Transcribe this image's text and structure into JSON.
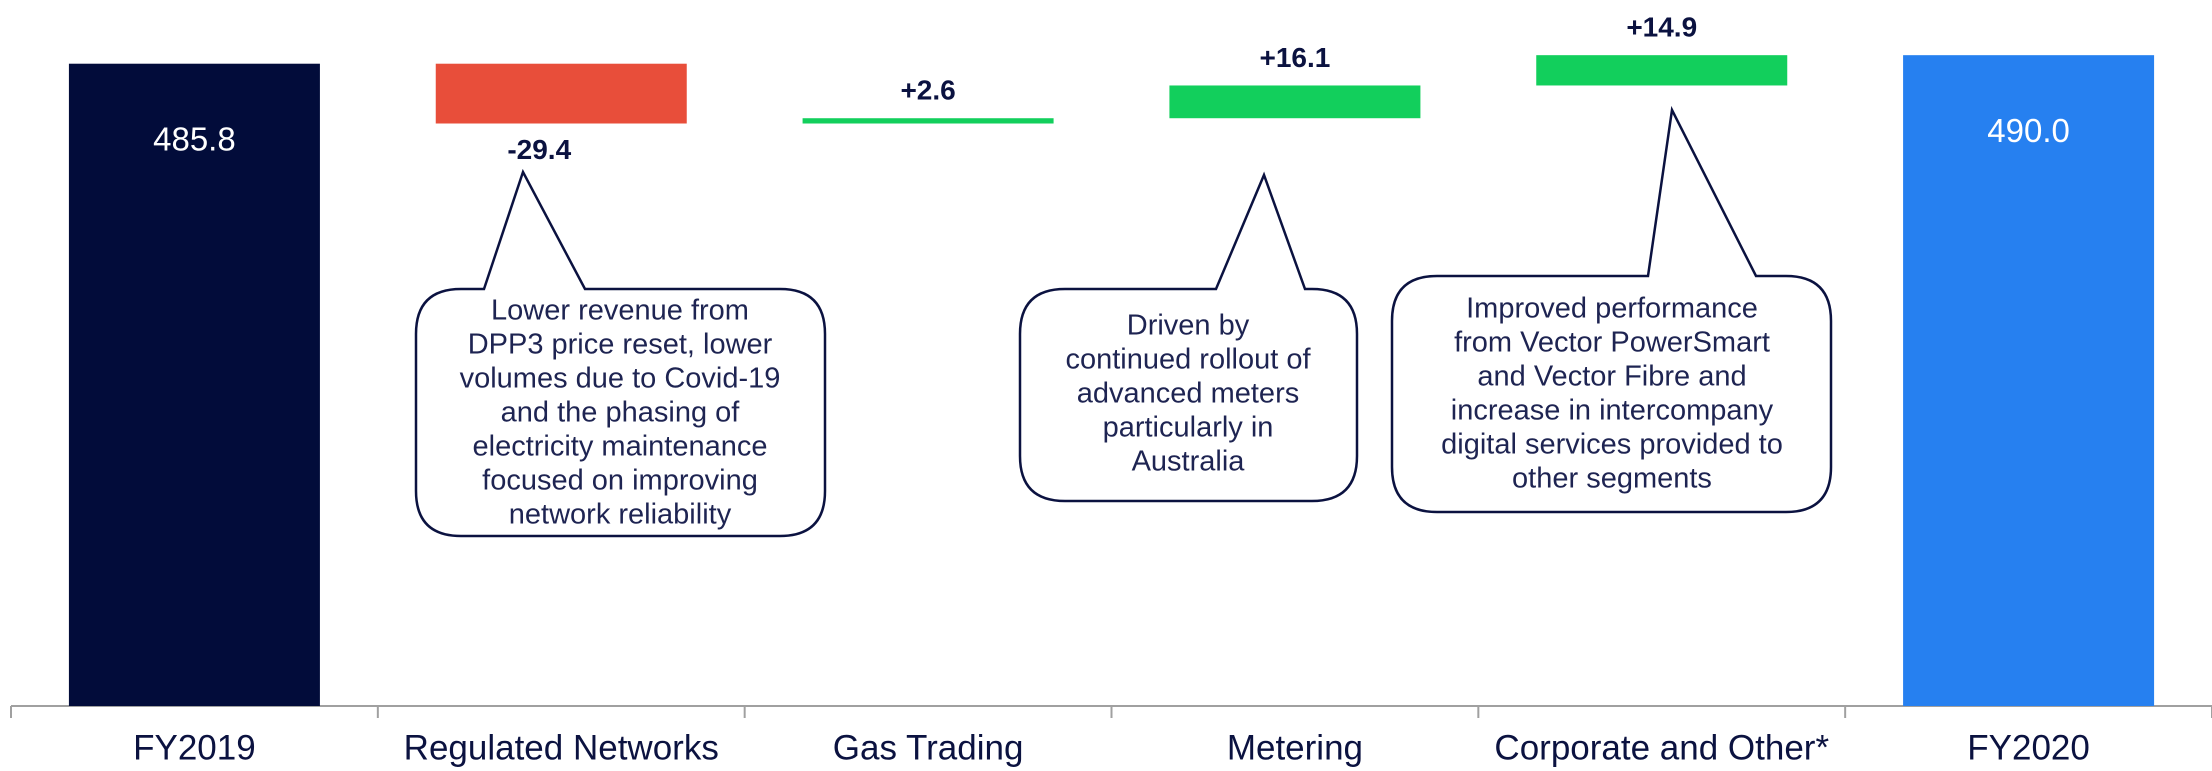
{
  "chart_data": {
    "type": "waterfall",
    "categories": [
      "FY2019",
      "Regulated Networks",
      "Gas Trading",
      "Metering",
      "Corporate and Other*",
      "FY2020"
    ],
    "values": [
      485.8,
      -29.4,
      2.6,
      16.1,
      14.9,
      490.0
    ],
    "value_labels": [
      "485.8",
      "-29.4",
      "+2.6",
      "+16.1",
      "+14.9",
      "490.0"
    ],
    "colors": [
      "#020c3a",
      "#e84e3a",
      "#12cf5c",
      "#12cf5c",
      "#12cf5c",
      "#2680f0"
    ],
    "ylim": [
      170,
      495
    ],
    "annotations": [
      {
        "lines": [
          "Lower revenue from",
          "DPP3 price reset, lower",
          "volumes due to Covid-19",
          "and the phasing of",
          "electricity maintenance",
          "focused on improving",
          "network reliability"
        ]
      },
      {
        "lines": [
          "Driven by",
          "continued rollout of",
          "advanced meters",
          "particularly in",
          "Australia"
        ]
      },
      {
        "lines": [
          "Improved performance",
          "from Vector PowerSmart",
          "and Vector Fibre and",
          "increase in intercompany",
          "digital services provided to",
          "other segments"
        ]
      }
    ]
  }
}
